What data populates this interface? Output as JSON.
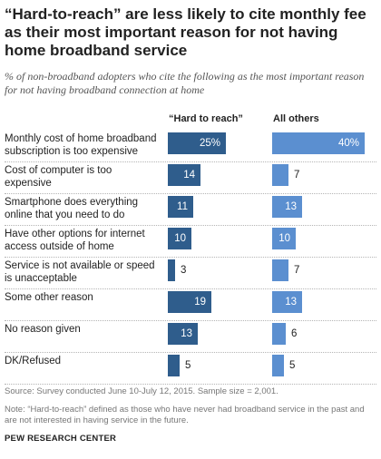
{
  "title": "“Hard-to-reach”  are less likely to cite monthly fee as their most important reason for not having home broadband  service",
  "subtitle": "% of non-broadband adopters who cite the following  as the most important reason for not having broadband connection at home",
  "source": "Source: Survey conducted June 10-July 12, 2015. Sample size = 2,001.",
  "note": "Note: “Hard-to-reach” defined as those who have never had broadband service in the past and are not interested in having service in the future.",
  "credit": "PEW RESEARCH CENTER",
  "colors": {
    "hard_to_reach": "#2f5d8c",
    "all_others": "#5b8fd0"
  },
  "chart_data": {
    "type": "bar",
    "orientation": "horizontal",
    "categories": [
      "Monthly cost of home broadband subscription is too expensive",
      "Cost of computer is too expensive",
      "Smartphone does everything online that you need to do",
      "Have other options for internet access outside of home",
      "Service is not available or speed is unacceptable",
      "Some other reason",
      "No reason given",
      "DK/Refused"
    ],
    "series": [
      {
        "name": "“Hard to reach”",
        "values": [
          25,
          14,
          11,
          10,
          3,
          19,
          13,
          5
        ],
        "labels": [
          "25%",
          "14",
          "11",
          "10",
          "3",
          "19",
          "13",
          "5"
        ]
      },
      {
        "name": "All others",
        "values": [
          40,
          7,
          13,
          10,
          7,
          13,
          6,
          5
        ],
        "labels": [
          "40%",
          "7",
          "13",
          "10",
          "7",
          "13",
          "6",
          "5"
        ]
      }
    ],
    "xlim": [
      0,
      40
    ],
    "grid": false,
    "legend": "column headers above bars"
  }
}
